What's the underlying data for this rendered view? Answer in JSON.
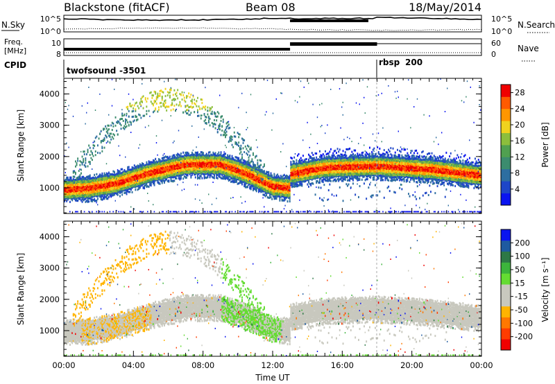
{
  "header": {
    "radar": "Blackstone (fitACF)",
    "beam": "Beam 08",
    "date": "18/May/2014"
  },
  "noise_panel": {
    "left_label": "N.Sky",
    "right_label": "N.Search",
    "left_ticks": [
      "10^5",
      "10^0"
    ],
    "right_ticks": [
      "10^5",
      "10^0"
    ]
  },
  "freq_panel": {
    "left_label_1": "Freq.",
    "left_label_2": "[MHz]",
    "left_ticks": [
      "10",
      "8"
    ],
    "right_label": "Nave",
    "right_ticks": [
      "60",
      "0"
    ]
  },
  "cpid_panel": {
    "label": "CPID",
    "modes": [
      {
        "name": "twofsound",
        "id": "-3501",
        "start_hour": 0
      },
      {
        "name": "rbsp",
        "id": "200",
        "start_hour": 18
      }
    ]
  },
  "colors": {
    "power_scale": [
      "#0a14f0",
      "#1e46c8",
      "#2d6ea0",
      "#3c8c6e",
      "#50a050",
      "#8cbe3c",
      "#f0d21e",
      "#ff9600",
      "#ff5a00",
      "#f00000"
    ],
    "velocity_scale": [
      "#0a14f0",
      "#1e5aa0",
      "#2d7846",
      "#3cb43c",
      "#64dc32",
      "#c8c8be",
      "#c8c8be",
      "#ffb400",
      "#ff7800",
      "#ff3c00",
      "#f00000"
    ],
    "scatter_gray": "#c8c8be"
  },
  "chart_data": [
    {
      "type": "heatmap",
      "title": "",
      "xlabel": "",
      "ylabel": "Slant Range [km]",
      "xlim": [
        0,
        24
      ],
      "ylim": [
        180,
        4500
      ],
      "y_ticks": [
        "1000",
        "2000",
        "3000",
        "4000"
      ],
      "colorbar": {
        "label": "Power [dB]",
        "ticks": [
          "4",
          "8",
          "12",
          "16",
          "20",
          "24",
          "28"
        ],
        "range": [
          0,
          30
        ]
      },
      "features": [
        {
          "name": "main band",
          "hours": [
            0,
            1.5,
            3,
            5,
            7,
            9,
            10.5,
            12,
            12.9,
            13,
            15,
            18,
            21,
            24
          ],
          "range_km": [
            950,
            1000,
            1150,
            1500,
            1750,
            1750,
            1450,
            1050,
            1000,
            1450,
            1650,
            1700,
            1600,
            1400
          ],
          "value_db": 28
        }
      ]
    },
    {
      "type": "heatmap",
      "title": "",
      "xlabel": "Time UT",
      "ylabel": "Slant Range [km]",
      "xlim": [
        0,
        24
      ],
      "ylim": [
        180,
        4500
      ],
      "x_ticks": [
        "00:00",
        "04:00",
        "08:00",
        "12:00",
        "16:00",
        "20:00",
        "00:00"
      ],
      "y_ticks": [
        "1000",
        "2000",
        "3000",
        "4000"
      ],
      "colorbar": {
        "label": "Velocity [m s⁻¹]",
        "ticks": [
          "200",
          "100",
          "50",
          "15",
          "-15",
          "-50",
          "-100",
          "-200"
        ],
        "range": [
          -250,
          250
        ]
      }
    }
  ]
}
